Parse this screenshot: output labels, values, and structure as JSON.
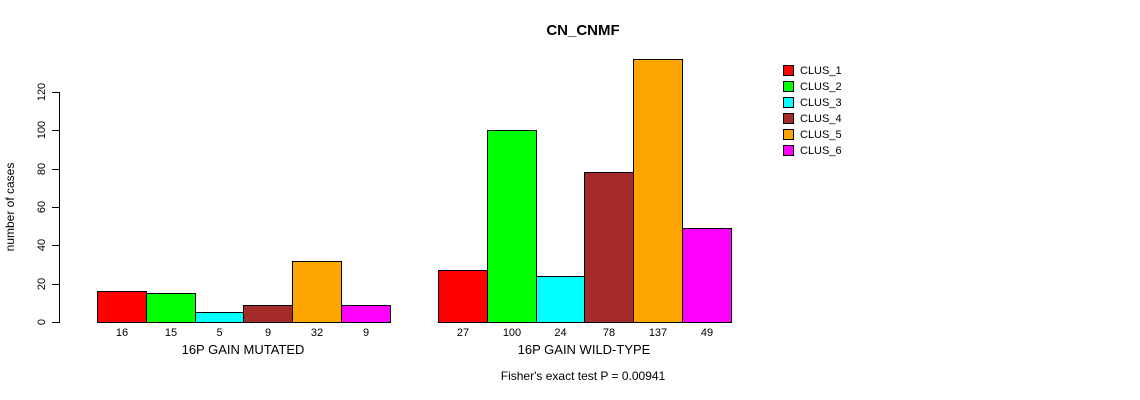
{
  "title": "CN_CNMF",
  "chart_data": {
    "type": "bar",
    "title": "CN_CNMF",
    "xlabel": "",
    "ylabel": "number of cases",
    "yticks": [
      0,
      20,
      40,
      60,
      80,
      100,
      120
    ],
    "ylim": [
      0,
      120
    ],
    "grid": false,
    "legend_position": "right",
    "categories": [
      "16P GAIN MUTATED",
      "16P GAIN WILD-TYPE"
    ],
    "series": [
      {
        "name": "CLUS_1",
        "color": "#FF0000",
        "values": [
          16,
          27
        ]
      },
      {
        "name": "CLUS_2",
        "color": "#00FF00",
        "values": [
          15,
          100
        ]
      },
      {
        "name": "CLUS_3",
        "color": "#00FFFF",
        "values": [
          5,
          24
        ]
      },
      {
        "name": "CLUS_4",
        "color": "#A52A2A",
        "values": [
          9,
          78
        ]
      },
      {
        "name": "CLUS_5",
        "color": "#FFA500",
        "values": [
          32,
          137
        ]
      },
      {
        "name": "CLUS_6",
        "color": "#FF00FF",
        "values": [
          9,
          49
        ]
      }
    ],
    "bar_value_labels": [
      [
        16,
        15,
        5,
        9,
        32,
        9
      ],
      [
        27,
        100,
        24,
        78,
        137,
        49
      ]
    ],
    "annotation": "Fisher's exact test P = 0.00941"
  }
}
